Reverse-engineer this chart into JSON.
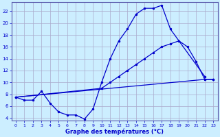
{
  "xlabel": "Graphe des températures (°C)",
  "bg_color": "#cceeff",
  "grid_color": "#aaaacc",
  "line_color": "#0000cc",
  "xlim": [
    -0.5,
    23.5
  ],
  "ylim": [
    3.5,
    23.5
  ],
  "yticks": [
    4,
    6,
    8,
    10,
    12,
    14,
    16,
    18,
    20,
    22
  ],
  "xticks": [
    0,
    1,
    2,
    3,
    4,
    5,
    6,
    7,
    8,
    9,
    10,
    11,
    12,
    13,
    14,
    15,
    16,
    17,
    18,
    19,
    20,
    21,
    22,
    23
  ],
  "curve1_x": [
    0,
    1,
    2,
    3,
    4,
    5,
    6,
    7,
    8,
    9,
    10,
    11,
    12,
    13,
    14,
    15,
    16,
    17,
    18,
    22
  ],
  "curve1_y": [
    7.5,
    7.0,
    7.0,
    8.5,
    6.5,
    5.0,
    4.5,
    4.5,
    3.8,
    5.5,
    10.0,
    14.0,
    17.0,
    19.0,
    21.5,
    22.5,
    22.5,
    23.0,
    19.0,
    11.0
  ],
  "curve2_x": [
    0,
    22,
    23
  ],
  "curve2_y": [
    7.5,
    10.5,
    10.5
  ],
  "curve3_x": [
    0,
    10,
    11,
    12,
    13,
    14,
    15,
    16,
    17,
    18,
    19,
    20,
    21,
    22,
    23
  ],
  "curve3_y": [
    7.5,
    9.0,
    10.0,
    11.0,
    12.0,
    13.0,
    14.0,
    15.0,
    16.0,
    16.5,
    17.0,
    16.0,
    13.5,
    10.5,
    10.5
  ]
}
